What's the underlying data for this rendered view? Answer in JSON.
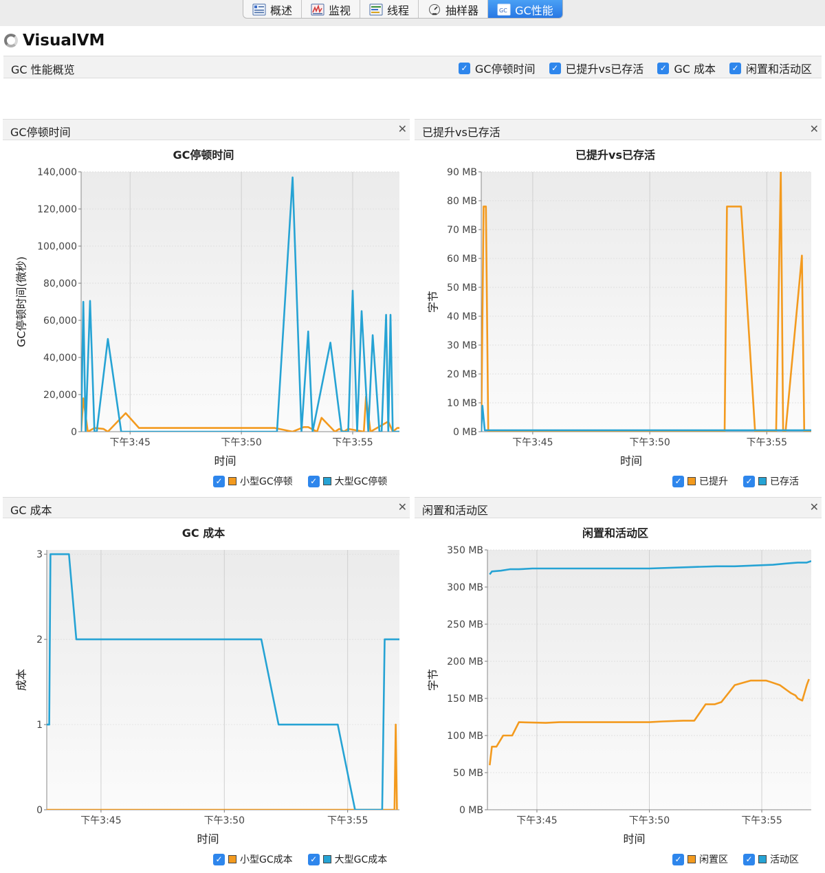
{
  "tabs": [
    {
      "label": "概述",
      "icon": "overview-icon",
      "active": false
    },
    {
      "label": "监视",
      "icon": "monitor-icon",
      "active": false
    },
    {
      "label": "线程",
      "icon": "threads-icon",
      "active": false
    },
    {
      "label": "抽样器",
      "icon": "sampler-icon",
      "active": false
    },
    {
      "label": "GC性能",
      "icon": "gc-icon",
      "active": true
    }
  ],
  "app": {
    "title": "VisualVM"
  },
  "overview": {
    "title": "GC 性能概览",
    "toggles": [
      {
        "label": "GC停顿时间",
        "checked": true
      },
      {
        "label": "已提升vs已存活",
        "checked": true
      },
      {
        "label": "GC 成本",
        "checked": true
      },
      {
        "label": "闲置和活动区",
        "checked": true
      }
    ]
  },
  "colors": {
    "orange": "#f39a1e",
    "blue": "#26a3d4"
  },
  "panels": [
    {
      "title": "GC停顿时间",
      "legend": [
        {
          "label": "小型GC停顿",
          "color": "#f39a1e"
        },
        {
          "label": "大型GC停顿",
          "color": "#26a3d4"
        }
      ]
    },
    {
      "title": "已提升vs已存活",
      "legend": [
        {
          "label": "已提升",
          "color": "#f39a1e"
        },
        {
          "label": "已存活",
          "color": "#26a3d4"
        }
      ]
    },
    {
      "title": "GC 成本",
      "legend": [
        {
          "label": "小型GC成本",
          "color": "#f39a1e"
        },
        {
          "label": "大型GC成本",
          "color": "#26a3d4"
        }
      ]
    },
    {
      "title": "闲置和活动区",
      "legend": [
        {
          "label": "闲置区",
          "color": "#f39a1e"
        },
        {
          "label": "活动区",
          "color": "#26a3d4"
        }
      ]
    }
  ],
  "chart_data": [
    {
      "type": "line",
      "title": "GC停顿时间",
      "xlabel": "时间",
      "ylabel": "GC停顿时间(微秒)",
      "x_unit": "minutes",
      "xlim": [
        222.8,
        237.1
      ],
      "ylim": [
        0,
        140000
      ],
      "yticks": [
        0,
        20000,
        40000,
        60000,
        80000,
        100000,
        120000,
        140000
      ],
      "ytick_labels": [
        "0",
        "20,000",
        "40,000",
        "60,000",
        "80,000",
        "100,000",
        "120,000",
        "140,000"
      ],
      "xticks": [
        225,
        230,
        235
      ],
      "xtick_labels": [
        "下午3:45",
        "下午3:50",
        "下午3:55"
      ],
      "series": [
        {
          "name": "小型GC停顿",
          "color": "#f39a1e",
          "x": [
            222.8,
            222.9,
            223.1,
            223.4,
            223.8,
            224.0,
            224.8,
            225.4,
            230.0,
            231.5,
            232.3,
            232.8,
            233.0,
            233.4,
            233.6,
            234.2,
            234.4,
            234.6,
            234.8,
            235.5,
            235.6,
            235.8,
            236.6,
            236.8,
            237.0,
            237.1
          ],
          "y": [
            0,
            18000,
            0,
            2000,
            1500,
            0,
            10000,
            2000,
            2000,
            2000,
            0,
            2500,
            2500,
            0,
            7500,
            0,
            1500,
            0,
            1500,
            0,
            19000,
            0,
            5500,
            0,
            2000,
            2000
          ]
        },
        {
          "name": "大型GC停顿",
          "color": "#26a3d4",
          "x": [
            222.8,
            222.9,
            223.0,
            223.2,
            223.4,
            223.5,
            224.0,
            224.6,
            224.9,
            229.5,
            231.6,
            232.3,
            232.7,
            233.0,
            233.2,
            234.0,
            234.5,
            234.8,
            235.0,
            235.2,
            235.4,
            235.7,
            235.9,
            236.2,
            236.3,
            236.5,
            236.6,
            236.7,
            236.8,
            237.1
          ],
          "y": [
            0,
            70000,
            0,
            70500,
            0,
            0,
            50000,
            0,
            0,
            0,
            0,
            137000,
            0,
            54000,
            0,
            48000,
            0,
            0,
            76000,
            0,
            65000,
            0,
            52000,
            0,
            0,
            63000,
            0,
            63000,
            0,
            0
          ]
        }
      ]
    },
    {
      "type": "line",
      "title": "已提升vs已存活",
      "xlabel": "时间",
      "ylabel": "字节",
      "x_unit": "minutes",
      "xlim": [
        222.8,
        236.9
      ],
      "ylim": [
        0,
        90
      ],
      "yticks": [
        0,
        10,
        20,
        30,
        40,
        50,
        60,
        70,
        80,
        90
      ],
      "ytick_labels": [
        "0 MB",
        "10 MB",
        "20 MB",
        "30 MB",
        "40 MB",
        "50 MB",
        "60 MB",
        "70 MB",
        "80 MB",
        "90 MB"
      ],
      "xticks": [
        225,
        230,
        235
      ],
      "xtick_labels": [
        "下午3:45",
        "下午3:50",
        "下午3:55"
      ],
      "series": [
        {
          "name": "已提升",
          "color": "#f39a1e",
          "x": [
            222.8,
            222.9,
            223.0,
            223.1,
            233.2,
            233.3,
            233.9,
            234.5,
            235.4,
            235.6,
            235.7,
            235.8,
            236.5,
            236.6,
            236.9
          ],
          "y": [
            0,
            78,
            78,
            0,
            0,
            78,
            78,
            0,
            0,
            90,
            0,
            0,
            61,
            0,
            0
          ]
        },
        {
          "name": "已存活",
          "color": "#26a3d4",
          "x": [
            222.8,
            222.85,
            222.95,
            223.1,
            232.8,
            233.3,
            235.4,
            235.9,
            236.9
          ],
          "y": [
            0,
            9,
            0.5,
            0.5,
            0.5,
            0.5,
            0.5,
            0.5,
            0.5
          ]
        }
      ]
    },
    {
      "type": "line",
      "title": "GC 成本",
      "xlabel": "时间",
      "ylabel": "成本",
      "x_unit": "minutes",
      "xlim": [
        222.8,
        237.1
      ],
      "ylim": [
        0,
        3.05
      ],
      "yticks": [
        0,
        1,
        2,
        3
      ],
      "ytick_labels": [
        "0",
        "1",
        "2",
        "3"
      ],
      "xticks": [
        225,
        230,
        235
      ],
      "xtick_labels": [
        "下午3:45",
        "下午3:50",
        "下午3:55"
      ],
      "series": [
        {
          "name": "小型GC成本",
          "color": "#f39a1e",
          "x": [
            222.8,
            236.9,
            236.95,
            237.0
          ],
          "y": [
            0,
            0,
            1,
            0
          ]
        },
        {
          "name": "大型GC成本",
          "color": "#26a3d4",
          "x": [
            222.8,
            222.9,
            222.95,
            223.7,
            224.0,
            231.5,
            232.2,
            234.6,
            235.3,
            236.4,
            236.5,
            237.1
          ],
          "y": [
            1,
            1,
            3,
            3,
            2,
            2,
            1,
            1,
            0,
            0,
            2,
            2
          ]
        }
      ]
    },
    {
      "type": "line",
      "title": "闲置和活动区",
      "xlabel": "时间",
      "ylabel": "字节",
      "x_unit": "minutes",
      "xlim": [
        222.8,
        237.2
      ],
      "ylim": [
        0,
        350
      ],
      "yticks": [
        0,
        50,
        100,
        150,
        200,
        250,
        300,
        350
      ],
      "ytick_labels": [
        "0 MB",
        "50 MB",
        "100 MB",
        "150 MB",
        "200 MB",
        "250 MB",
        "300 MB",
        "350 MB"
      ],
      "xticks": [
        225,
        230,
        235
      ],
      "xtick_labels": [
        "下午3:45",
        "下午3:50",
        "下午3:55"
      ],
      "series": [
        {
          "name": "闲置区",
          "color": "#f39a1e",
          "x": [
            222.9,
            223.0,
            223.2,
            223.5,
            223.9,
            224.2,
            225.4,
            226.0,
            230.0,
            230.6,
            231.5,
            232.0,
            232.5,
            232.9,
            233.2,
            233.8,
            234.5,
            235.2,
            235.4,
            235.8,
            236.3,
            236.5,
            236.6,
            236.8,
            237.0,
            237.1
          ],
          "y": [
            60,
            85,
            85,
            100,
            100,
            118,
            117,
            118,
            118,
            119,
            120,
            120,
            142,
            142,
            145,
            168,
            174,
            174,
            172,
            168,
            157,
            154,
            150,
            147,
            168,
            176
          ]
        },
        {
          "name": "活动区",
          "color": "#26a3d4",
          "x": [
            222.9,
            223.0,
            223.4,
            223.8,
            224.2,
            224.8,
            225.4,
            230.0,
            232.0,
            233.0,
            233.8,
            235.5,
            236.2,
            236.6,
            237.0,
            237.2
          ],
          "y": [
            317,
            321,
            322,
            324,
            324,
            325,
            325,
            325,
            327,
            328,
            328,
            330,
            332,
            333,
            333,
            335
          ]
        }
      ]
    }
  ]
}
